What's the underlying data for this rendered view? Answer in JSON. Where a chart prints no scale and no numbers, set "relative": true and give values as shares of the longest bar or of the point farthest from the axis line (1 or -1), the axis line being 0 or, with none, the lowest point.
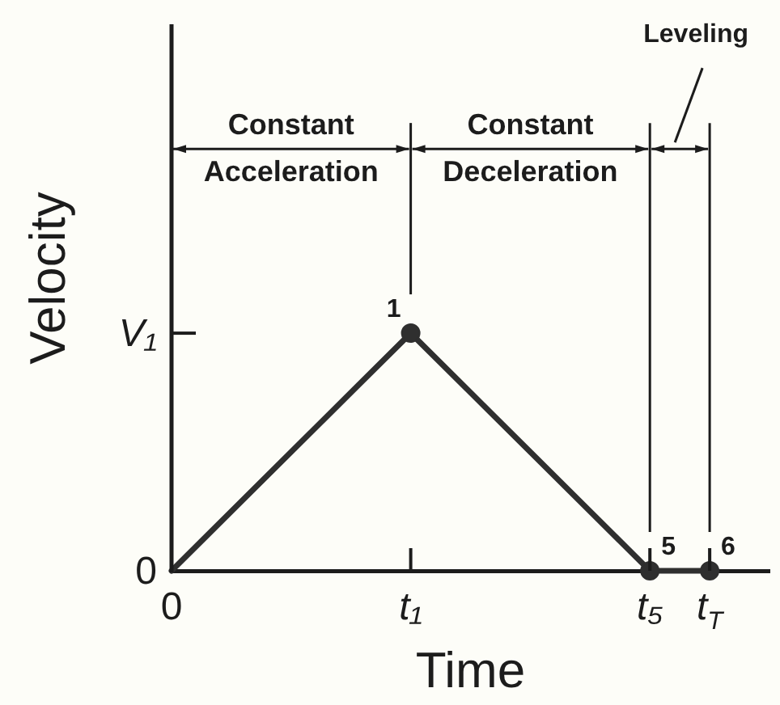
{
  "chart_data": {
    "type": "line",
    "xlabel": "Time",
    "ylabel": "Velocity",
    "relative": true,
    "categories": [
      "0",
      null,
      null,
      null,
      "t₁",
      null,
      null,
      null,
      "t₅",
      "t$_{T}$",
      null
    ],
    "series": [
      {
        "color": "#2f2f2f",
        "values": [
          0,
          0.25,
          0.5,
          0.75,
          1,
          0.75,
          0.5,
          0.25,
          0,
          0,
          null
        ],
        "marker": "none"
      },
      {
        "type": "scatter",
        "color": "#2f2f2f",
        "values": [
          null,
          null,
          null,
          null,
          1,
          null,
          null,
          null,
          0,
          0,
          null
        ],
        "marker": "circle"
      }
    ],
    "annotations": [
      "Constant Acceleration",
      "Constant Deceleration",
      "Leveling",
      "V₁",
      "0",
      {
        "text": "1",
        "x": "t₁",
        "y": 1
      },
      {
        "text": "5",
        "x": "t₅",
        "y": 0
      },
      {
        "text": "6",
        "x": "t$_{T}$",
        "y": 0
      }
    ]
  }
}
